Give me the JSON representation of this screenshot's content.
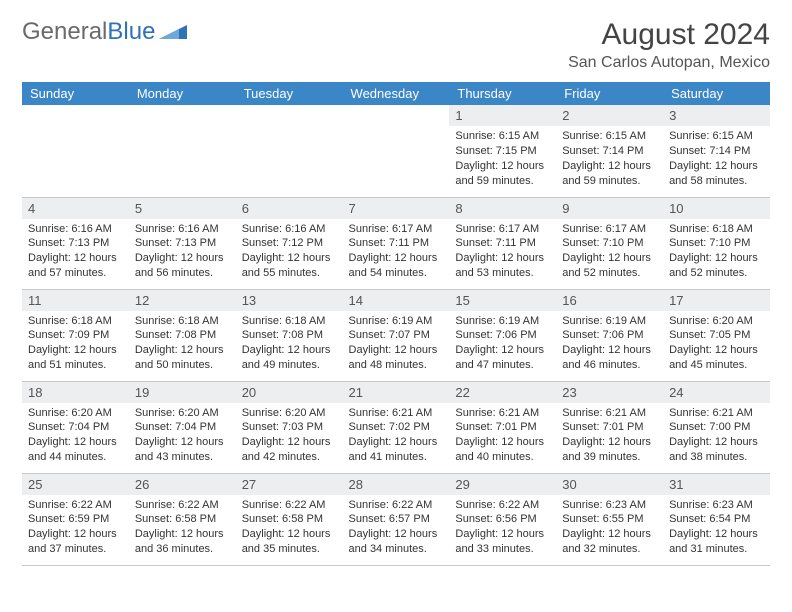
{
  "brand": {
    "part1": "General",
    "part2": "Blue"
  },
  "title": "August 2024",
  "location": "San Carlos Autopan, Mexico",
  "colors": {
    "header_bg": "#3b86c6",
    "header_text": "#ffffff",
    "daynum_bg": "#eceeef",
    "border": "#c8c8c8",
    "brand_gray": "#6a6a6a",
    "brand_blue": "#2f72b8"
  },
  "weekdays": [
    "Sunday",
    "Monday",
    "Tuesday",
    "Wednesday",
    "Thursday",
    "Friday",
    "Saturday"
  ],
  "weeks": [
    [
      {
        "empty": true
      },
      {
        "empty": true
      },
      {
        "empty": true
      },
      {
        "empty": true
      },
      {
        "day": "1",
        "sunrise": "Sunrise: 6:15 AM",
        "sunset": "Sunset: 7:15 PM",
        "daylight": "Daylight: 12 hours and 59 minutes."
      },
      {
        "day": "2",
        "sunrise": "Sunrise: 6:15 AM",
        "sunset": "Sunset: 7:14 PM",
        "daylight": "Daylight: 12 hours and 59 minutes."
      },
      {
        "day": "3",
        "sunrise": "Sunrise: 6:15 AM",
        "sunset": "Sunset: 7:14 PM",
        "daylight": "Daylight: 12 hours and 58 minutes."
      }
    ],
    [
      {
        "day": "4",
        "sunrise": "Sunrise: 6:16 AM",
        "sunset": "Sunset: 7:13 PM",
        "daylight": "Daylight: 12 hours and 57 minutes."
      },
      {
        "day": "5",
        "sunrise": "Sunrise: 6:16 AM",
        "sunset": "Sunset: 7:13 PM",
        "daylight": "Daylight: 12 hours and 56 minutes."
      },
      {
        "day": "6",
        "sunrise": "Sunrise: 6:16 AM",
        "sunset": "Sunset: 7:12 PM",
        "daylight": "Daylight: 12 hours and 55 minutes."
      },
      {
        "day": "7",
        "sunrise": "Sunrise: 6:17 AM",
        "sunset": "Sunset: 7:11 PM",
        "daylight": "Daylight: 12 hours and 54 minutes."
      },
      {
        "day": "8",
        "sunrise": "Sunrise: 6:17 AM",
        "sunset": "Sunset: 7:11 PM",
        "daylight": "Daylight: 12 hours and 53 minutes."
      },
      {
        "day": "9",
        "sunrise": "Sunrise: 6:17 AM",
        "sunset": "Sunset: 7:10 PM",
        "daylight": "Daylight: 12 hours and 52 minutes."
      },
      {
        "day": "10",
        "sunrise": "Sunrise: 6:18 AM",
        "sunset": "Sunset: 7:10 PM",
        "daylight": "Daylight: 12 hours and 52 minutes."
      }
    ],
    [
      {
        "day": "11",
        "sunrise": "Sunrise: 6:18 AM",
        "sunset": "Sunset: 7:09 PM",
        "daylight": "Daylight: 12 hours and 51 minutes."
      },
      {
        "day": "12",
        "sunrise": "Sunrise: 6:18 AM",
        "sunset": "Sunset: 7:08 PM",
        "daylight": "Daylight: 12 hours and 50 minutes."
      },
      {
        "day": "13",
        "sunrise": "Sunrise: 6:18 AM",
        "sunset": "Sunset: 7:08 PM",
        "daylight": "Daylight: 12 hours and 49 minutes."
      },
      {
        "day": "14",
        "sunrise": "Sunrise: 6:19 AM",
        "sunset": "Sunset: 7:07 PM",
        "daylight": "Daylight: 12 hours and 48 minutes."
      },
      {
        "day": "15",
        "sunrise": "Sunrise: 6:19 AM",
        "sunset": "Sunset: 7:06 PM",
        "daylight": "Daylight: 12 hours and 47 minutes."
      },
      {
        "day": "16",
        "sunrise": "Sunrise: 6:19 AM",
        "sunset": "Sunset: 7:06 PM",
        "daylight": "Daylight: 12 hours and 46 minutes."
      },
      {
        "day": "17",
        "sunrise": "Sunrise: 6:20 AM",
        "sunset": "Sunset: 7:05 PM",
        "daylight": "Daylight: 12 hours and 45 minutes."
      }
    ],
    [
      {
        "day": "18",
        "sunrise": "Sunrise: 6:20 AM",
        "sunset": "Sunset: 7:04 PM",
        "daylight": "Daylight: 12 hours and 44 minutes."
      },
      {
        "day": "19",
        "sunrise": "Sunrise: 6:20 AM",
        "sunset": "Sunset: 7:04 PM",
        "daylight": "Daylight: 12 hours and 43 minutes."
      },
      {
        "day": "20",
        "sunrise": "Sunrise: 6:20 AM",
        "sunset": "Sunset: 7:03 PM",
        "daylight": "Daylight: 12 hours and 42 minutes."
      },
      {
        "day": "21",
        "sunrise": "Sunrise: 6:21 AM",
        "sunset": "Sunset: 7:02 PM",
        "daylight": "Daylight: 12 hours and 41 minutes."
      },
      {
        "day": "22",
        "sunrise": "Sunrise: 6:21 AM",
        "sunset": "Sunset: 7:01 PM",
        "daylight": "Daylight: 12 hours and 40 minutes."
      },
      {
        "day": "23",
        "sunrise": "Sunrise: 6:21 AM",
        "sunset": "Sunset: 7:01 PM",
        "daylight": "Daylight: 12 hours and 39 minutes."
      },
      {
        "day": "24",
        "sunrise": "Sunrise: 6:21 AM",
        "sunset": "Sunset: 7:00 PM",
        "daylight": "Daylight: 12 hours and 38 minutes."
      }
    ],
    [
      {
        "day": "25",
        "sunrise": "Sunrise: 6:22 AM",
        "sunset": "Sunset: 6:59 PM",
        "daylight": "Daylight: 12 hours and 37 minutes."
      },
      {
        "day": "26",
        "sunrise": "Sunrise: 6:22 AM",
        "sunset": "Sunset: 6:58 PM",
        "daylight": "Daylight: 12 hours and 36 minutes."
      },
      {
        "day": "27",
        "sunrise": "Sunrise: 6:22 AM",
        "sunset": "Sunset: 6:58 PM",
        "daylight": "Daylight: 12 hours and 35 minutes."
      },
      {
        "day": "28",
        "sunrise": "Sunrise: 6:22 AM",
        "sunset": "Sunset: 6:57 PM",
        "daylight": "Daylight: 12 hours and 34 minutes."
      },
      {
        "day": "29",
        "sunrise": "Sunrise: 6:22 AM",
        "sunset": "Sunset: 6:56 PM",
        "daylight": "Daylight: 12 hours and 33 minutes."
      },
      {
        "day": "30",
        "sunrise": "Sunrise: 6:23 AM",
        "sunset": "Sunset: 6:55 PM",
        "daylight": "Daylight: 12 hours and 32 minutes."
      },
      {
        "day": "31",
        "sunrise": "Sunrise: 6:23 AM",
        "sunset": "Sunset: 6:54 PM",
        "daylight": "Daylight: 12 hours and 31 minutes."
      }
    ]
  ]
}
